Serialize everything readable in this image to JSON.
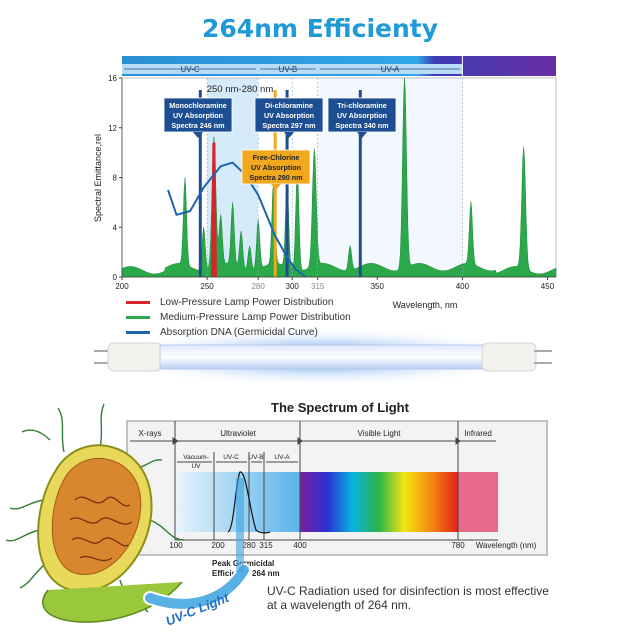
{
  "title": "264nm Efficienty",
  "chart_data": [
    {
      "type": "line",
      "ylabel": "Spectral Emittance,rel",
      "xlabel": "Wavelength, nm",
      "xlim": [
        200,
        455
      ],
      "ylim": [
        0,
        16
      ],
      "x_ticks": [
        200,
        250,
        280,
        300,
        315,
        350,
        400,
        450
      ],
      "y_ticks": [
        0,
        4,
        8,
        12,
        16
      ],
      "bands": [
        {
          "label": "UV-C",
          "from": 200,
          "to": 280
        },
        {
          "label": "UV-B",
          "from": 280,
          "to": 315
        },
        {
          "label": "UV-A",
          "from": 315,
          "to": 400
        }
      ],
      "highlight_range_label": "250 nm-280 nm",
      "highlight_range": [
        250,
        280
      ],
      "annotations": [
        {
          "text": [
            "Monochloramine",
            "UV Absorption",
            "Spectra 246 nm"
          ],
          "x": 246
        },
        {
          "text": [
            "Di-chloramine",
            "UV Absorption",
            "Spectra 297 nm"
          ],
          "x": 297
        },
        {
          "text": [
            "Tri-chloramine",
            "UV Absorption",
            "Spectra 340 nm"
          ],
          "x": 340
        },
        {
          "text": [
            "Free-Chlorine",
            "UV Absorption",
            "Spectra 290 nm"
          ],
          "x": 290
        }
      ],
      "series": [
        {
          "name": "Low-Pressure Lamp Power Distribution",
          "color": "#d6262b",
          "peaks": [
            {
              "x": 254,
              "y": 10.8
            }
          ]
        },
        {
          "name": "Medium-Pressure Lamp Power Distribution",
          "color": "#2aa84a",
          "peaks": [
            {
              "x": 237,
              "y": 7.0
            },
            {
              "x": 248,
              "y": 3.5
            },
            {
              "x": 254,
              "y": 10.5
            },
            {
              "x": 258,
              "y": 4.0
            },
            {
              "x": 265,
              "y": 5.0
            },
            {
              "x": 270,
              "y": 3.0
            },
            {
              "x": 275,
              "y": 2.0
            },
            {
              "x": 280,
              "y": 4.0
            },
            {
              "x": 289,
              "y": 6.5
            },
            {
              "x": 297,
              "y": 7.0
            },
            {
              "x": 303,
              "y": 8.2
            },
            {
              "x": 313,
              "y": 9.4
            },
            {
              "x": 334,
              "y": 2.0
            },
            {
              "x": 366,
              "y": 15.5
            },
            {
              "x": 405,
              "y": 5.0
            },
            {
              "x": 436,
              "y": 9.8
            }
          ]
        },
        {
          "name": "Absorption DNA (Germicidal Curve)",
          "color": "#1d64b0",
          "points": [
            [
              227,
              7.0
            ],
            [
              232,
              5.0
            ],
            [
              240,
              5.3
            ],
            [
              248,
              7.2
            ],
            [
              258,
              8.9
            ],
            [
              265,
              9.2
            ],
            [
              272,
              8.3
            ],
            [
              280,
              6.6
            ],
            [
              290,
              3.3
            ],
            [
              297,
              1.6
            ],
            [
              302,
              0.6
            ],
            [
              308,
              0
            ]
          ]
        }
      ]
    },
    {
      "type": "line",
      "title": "The Spectrum of Light",
      "xlabel": "Wavelength (nm)",
      "x_ticks": [
        "100",
        "200",
        "280",
        "315",
        "400",
        "780"
      ],
      "regions": [
        "X-rays",
        "Ultraviolet",
        "Visible Light",
        "Infrared"
      ],
      "sub_regions": [
        "Vacuum-UV",
        "UV-C",
        "UV-B",
        "UV-A"
      ],
      "peak_label": [
        "Peak Germicidal",
        "Efficiency 264 nm"
      ],
      "peak_x": 264,
      "organism_label": "UV-C Light"
    }
  ],
  "caption": [
    "UV-C Radiation used for disinfection is most effective",
    "at a wavelength of 264 nm."
  ],
  "colors": {
    "title": "#1f9ad6",
    "uv_band": "#2c7fc4",
    "annotation": "#1d4e92",
    "free_chlorine": "#f2a81d"
  }
}
